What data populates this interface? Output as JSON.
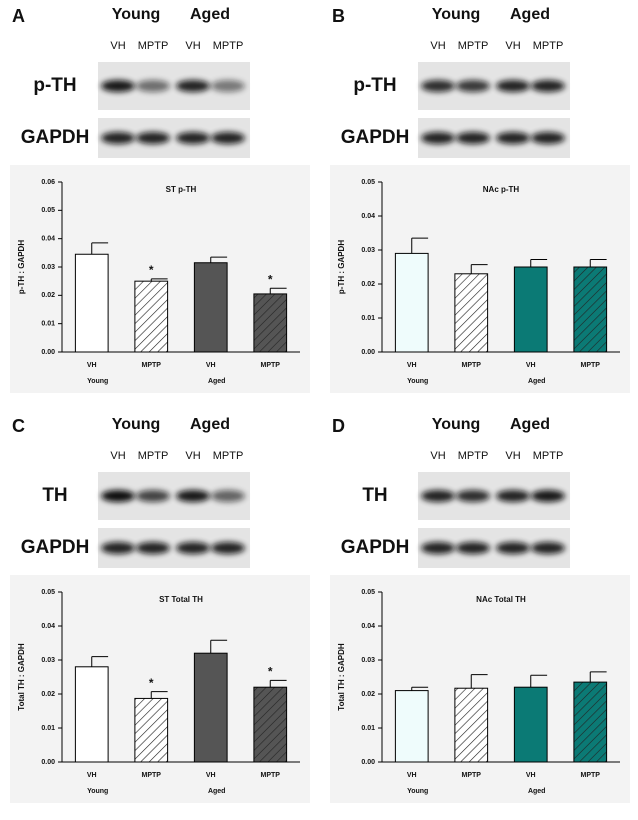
{
  "chart_data": [
    {
      "type": "bar",
      "panel": "A",
      "blot_groups": [
        "Young",
        "Aged"
      ],
      "blot_lanes": [
        "VH",
        "MPTP",
        "VH",
        "MPTP"
      ],
      "blot_rows": [
        "p-TH",
        "GAPDH"
      ],
      "title": "ST p-TH",
      "y_label": "p-TH : GAPDH",
      "categories": [
        "VH",
        "MPTP",
        "VH",
        "MPTP"
      ],
      "groups": [
        "Young",
        "Aged"
      ],
      "values": [
        0.0345,
        0.025,
        0.0315,
        0.0205
      ],
      "errors": [
        0.004,
        0.0008,
        0.002,
        0.002
      ],
      "colors": [
        "#ffffff",
        "#ffffff",
        "#555555",
        "#555555"
      ],
      "hatched": [
        false,
        true,
        false,
        true
      ],
      "annotations": [
        null,
        "*",
        null,
        "*"
      ],
      "ylim": [
        0,
        0.06
      ],
      "yticks": [
        {
          "value": 0,
          "label": "0.00"
        },
        {
          "value": 0.01,
          "label": "0.01"
        },
        {
          "value": 0.02,
          "label": "0.02"
        },
        {
          "value": 0.03,
          "label": "0.03"
        },
        {
          "value": 0.04,
          "label": "0.04"
        },
        {
          "value": 0.05,
          "label": "0.05"
        },
        {
          "value": 0.06,
          "label": "0.06"
        }
      ]
    },
    {
      "type": "bar",
      "panel": "B",
      "blot_groups": [
        "Young",
        "Aged"
      ],
      "blot_lanes": [
        "VH",
        "MPTP",
        "VH",
        "MPTP"
      ],
      "blot_rows": [
        "p-TH",
        "GAPDH"
      ],
      "title": "NAc p-TH",
      "y_label": "p-TH : GAPDH",
      "categories": [
        "VH",
        "MPTP",
        "VH",
        "MPTP"
      ],
      "groups": [
        "Young",
        "Aged"
      ],
      "values": [
        0.029,
        0.023,
        0.025,
        0.025
      ],
      "errors": [
        0.0045,
        0.0027,
        0.0022,
        0.0022
      ],
      "colors": [
        "#effcfc",
        "#ffffff",
        "#0b7a75",
        "#0b7a75"
      ],
      "hatched": [
        false,
        true,
        false,
        true
      ],
      "annotations": [
        null,
        null,
        null,
        null
      ],
      "ylim": [
        0,
        0.05
      ],
      "yticks": [
        {
          "value": 0,
          "label": "0.00"
        },
        {
          "value": 0.01,
          "label": "0.01"
        },
        {
          "value": 0.02,
          "label": "0.02"
        },
        {
          "value": 0.03,
          "label": "0.03"
        },
        {
          "value": 0.04,
          "label": "0.04"
        },
        {
          "value": 0.05,
          "label": "0.05"
        }
      ]
    },
    {
      "type": "bar",
      "panel": "C",
      "blot_groups": [
        "Young",
        "Aged"
      ],
      "blot_lanes": [
        "VH",
        "MPTP",
        "VH",
        "MPTP"
      ],
      "blot_rows": [
        "TH",
        "GAPDH"
      ],
      "title": "ST Total TH",
      "y_label": "Total TH : GAPDH",
      "categories": [
        "VH",
        "MPTP",
        "VH",
        "MPTP"
      ],
      "groups": [
        "Young",
        "Aged"
      ],
      "values": [
        0.028,
        0.0187,
        0.032,
        0.022
      ],
      "errors": [
        0.003,
        0.002,
        0.0038,
        0.002
      ],
      "colors": [
        "#ffffff",
        "#ffffff",
        "#555555",
        "#555555"
      ],
      "hatched": [
        false,
        true,
        false,
        true
      ],
      "annotations": [
        null,
        "*",
        null,
        "*"
      ],
      "ylim": [
        0,
        0.05
      ],
      "yticks": [
        {
          "value": 0,
          "label": "0.00"
        },
        {
          "value": 0.01,
          "label": "0.01"
        },
        {
          "value": 0.02,
          "label": "0.02"
        },
        {
          "value": 0.03,
          "label": "0.03"
        },
        {
          "value": 0.04,
          "label": "0.04"
        },
        {
          "value": 0.05,
          "label": "0.05"
        }
      ]
    },
    {
      "type": "bar",
      "panel": "D",
      "blot_groups": [
        "Young",
        "Aged"
      ],
      "blot_lanes": [
        "VH",
        "MPTP",
        "VH",
        "MPTP"
      ],
      "blot_rows": [
        "TH",
        "GAPDH"
      ],
      "title": "NAc Total TH",
      "y_label": "Total TH : GAPDH",
      "categories": [
        "VH",
        "MPTP",
        "VH",
        "MPTP"
      ],
      "groups": [
        "Young",
        "Aged"
      ],
      "values": [
        0.021,
        0.0217,
        0.022,
        0.0235
      ],
      "errors": [
        0.001,
        0.004,
        0.0035,
        0.003
      ],
      "colors": [
        "#effcfc",
        "#ffffff",
        "#0b7a75",
        "#0b7a75"
      ],
      "hatched": [
        false,
        true,
        false,
        true
      ],
      "annotations": [
        null,
        null,
        null,
        null
      ],
      "ylim": [
        0,
        0.05
      ],
      "yticks": [
        {
          "value": 0,
          "label": "0.00"
        },
        {
          "value": 0.01,
          "label": "0.01"
        },
        {
          "value": 0.02,
          "label": "0.02"
        },
        {
          "value": 0.03,
          "label": "0.03"
        },
        {
          "value": 0.04,
          "label": "0.04"
        },
        {
          "value": 0.05,
          "label": "0.05"
        }
      ]
    }
  ]
}
